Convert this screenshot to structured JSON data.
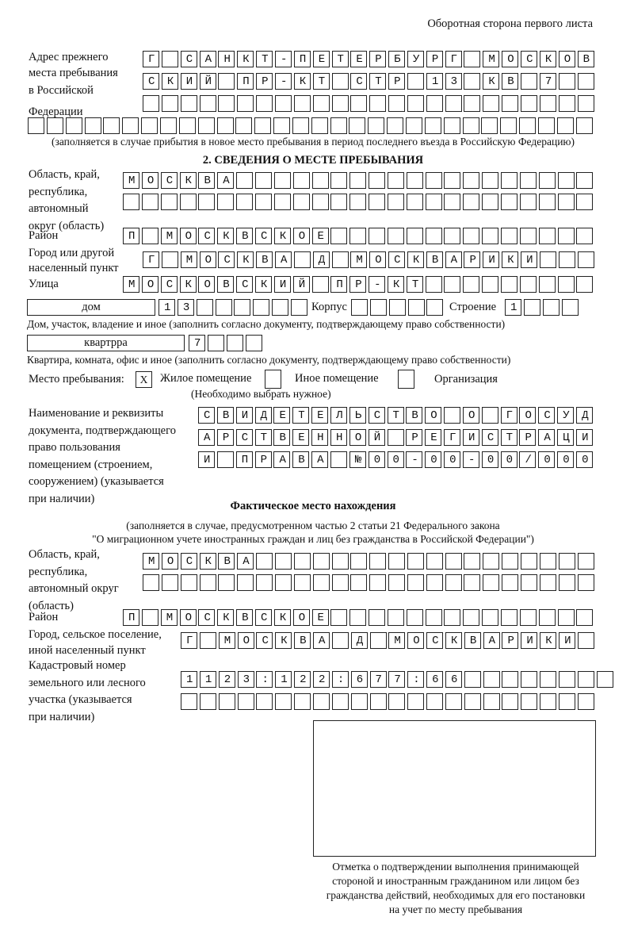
{
  "header": "Оборотная сторона первого листа",
  "prev_address": {
    "label_lines": [
      "Адрес прежнего",
      "места пребывания",
      "в Российской",
      "Федерации"
    ],
    "rows": [
      "Г САНКТ-ПЕТЕРБУРГ МОСКОВ",
      "СКИЙ ПР-КТ СТР 13 КВ 7  ",
      "                        ",
      "                              "
    ],
    "note": "(заполняется в случае прибытия в новое место пребывания в период последнего въезда в Российскую Федерацию)"
  },
  "section2": {
    "title": "2. СВЕДЕНИЯ О МЕСТЕ ПРЕБЫВАНИЯ",
    "region_label_lines": [
      "Область, край,",
      "республика,",
      "автономный",
      "округ (область)"
    ],
    "region_rows": [
      "МОСКВА                   ",
      "                         "
    ],
    "district_label": "Район",
    "district_row": "П МОСКВСКОЕ              ",
    "city_label_lines": [
      "Город или другой",
      "населенный пункт"
    ],
    "city_row": "Г МОСКВА Д МОСКВАРИКИ   ",
    "street_label": "Улица",
    "street_row": "МОСКОВСКИЙ ПР-КТ         ",
    "house_type": "дом",
    "house_row": "13      ",
    "korpus_label": "Корпус",
    "korpus_row": "     ",
    "building_label": "Строение",
    "building_row": "1   ",
    "house_note": "Дом, участок, владение и иное (заполнить согласно документу, подтверждающему право собственности)",
    "apt_type": "квартрра",
    "apt_row": "7   ",
    "apt_note": "Квартира, комната, офис и иное (заполнить согласно документу, подтверждающему право собственности)",
    "stay_label": "Место пребывания:",
    "options": [
      {
        "mark": "X",
        "label": "Жилое помещение"
      },
      {
        "mark": "",
        "label": "Иное помещение"
      },
      {
        "mark": "",
        "label": "Организация"
      }
    ],
    "choose_note": "(Необходимо выбрать нужное)",
    "doc_label_lines": [
      "Наименование и реквизиты",
      "документа, подтверждающего",
      "право пользования",
      "помещением (строением,",
      "сооружением) (указывается",
      "при наличии)"
    ],
    "doc_rows": [
      "СВИДЕТЕЛЬСТВО О ГОСУД",
      "АРСТВЕННОЙ РЕГИСТРАЦИ",
      "И ПРАВА №00-00-00/000"
    ]
  },
  "actual": {
    "title": "Фактическое место нахождения",
    "note_lines": [
      "(заполняется в случае, предусмотренном частью 2 статьи 21 Федерального закона",
      "\"О миграционном учете иностранных граждан и лиц без гражданства в Российской Федерации\")"
    ],
    "region_label_lines": [
      "Область, край,",
      "республика,",
      "автономный округ",
      "(область)"
    ],
    "region_rows": [
      "МОСКВА                  ",
      "                        "
    ],
    "district_label": "Район",
    "district_row": "П МОСКВСКОЕ              ",
    "city_label_lines": [
      "Город, сельское поселение,",
      "иной населенный пункт"
    ],
    "city_row": "Г МОСКВА Д МОСКВАРИКИ ",
    "cadastre_label_lines": [
      "Кадастровый номер",
      "земельного или лесного",
      "участка (указывается",
      "при наличии)"
    ],
    "cadastre_rows": [
      "1123:122:677:66        ",
      "                      "
    ]
  },
  "stamp_caption_lines": [
    "Отметка о подтверждении выполнения принимающей",
    "стороной и иностранным гражданином или лицом без",
    "гражданства действий, необходимых для его постановки",
    "на учет по месту пребывания"
  ]
}
